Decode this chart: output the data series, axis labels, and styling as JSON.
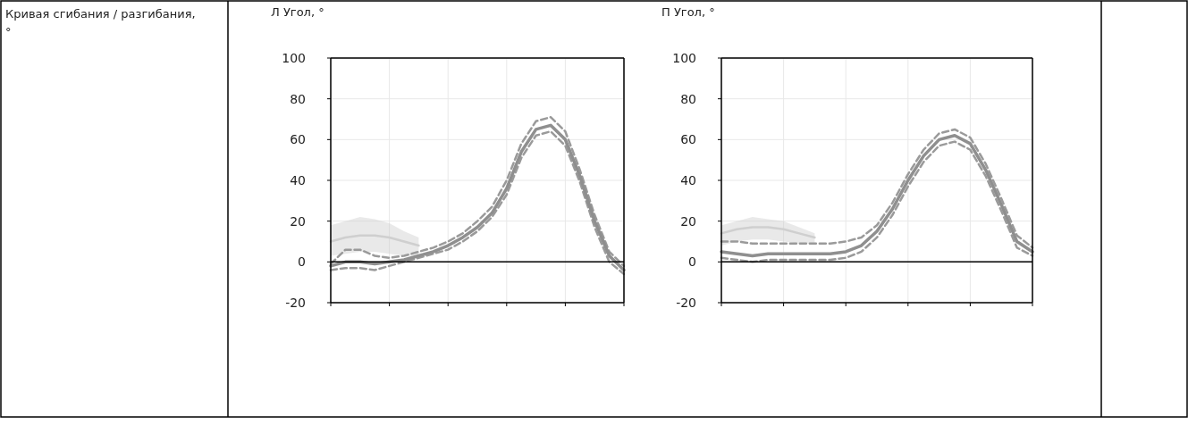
{
  "chart_data": [
    {
      "type": "line",
      "title": "Л Угол, °",
      "annotations": [
        "Кривая сгибания / разгибания, °"
      ],
      "categories": [
        null,
        null,
        null,
        null,
        null,
        null,
        null,
        null,
        null,
        null,
        null,
        null,
        null,
        null,
        null,
        null,
        null,
        null,
        null,
        null,
        null
      ],
      "ylim": [
        -20,
        100
      ],
      "yticks": [
        -20,
        0,
        20,
        40,
        60,
        80,
        100
      ],
      "grid": true,
      "series": [
        {
          "color": "#cfcfcf",
          "line_style": "solid",
          "values": [
            10,
            12,
            13,
            13,
            12,
            10,
            8,
            null,
            null,
            null,
            null,
            null,
            null,
            null,
            null,
            null,
            null,
            null,
            null,
            null,
            null
          ],
          "lower": [
            3,
            4,
            5,
            5,
            4,
            3,
            3,
            null,
            null,
            null,
            null,
            null,
            null,
            null,
            null,
            null,
            null,
            null,
            null,
            null,
            null
          ],
          "upper": [
            18,
            20,
            22,
            21,
            19,
            15,
            12,
            null,
            null,
            null,
            null,
            null,
            null,
            null,
            null,
            null,
            null,
            null,
            null,
            null,
            null
          ]
        },
        {
          "color": "#9a9a9a",
          "line_style": "dashed",
          "values": [
            -1,
            6,
            6,
            3,
            2,
            3,
            5,
            7,
            10,
            14,
            20,
            27,
            40,
            58,
            69,
            71,
            64,
            45,
            23,
            5,
            -2
          ]
        },
        {
          "color": "#9a9a9a",
          "line_style": "dashed",
          "values": [
            -4,
            -3,
            -3,
            -4,
            -2,
            0,
            2,
            4,
            6,
            10,
            15,
            22,
            33,
            51,
            62,
            64,
            57,
            39,
            17,
            0,
            -6
          ]
        },
        {
          "color": "#8f8f8f",
          "line_style": "solid",
          "values": [
            -2,
            0,
            0,
            -1,
            0,
            1,
            3,
            5,
            8,
            12,
            17,
            24,
            36,
            54,
            65,
            67,
            60,
            42,
            20,
            3,
            -4
          ]
        }
      ],
      "ref_lines": [
        {
          "axis": "y",
          "value": 0,
          "color": "#000000",
          "line_style": "solid"
        }
      ]
    },
    {
      "type": "line",
      "title": "П Угол, °",
      "categories": [
        null,
        null,
        null,
        null,
        null,
        null,
        null,
        null,
        null,
        null,
        null,
        null,
        null,
        null,
        null,
        null,
        null,
        null,
        null,
        null,
        null
      ],
      "ylim": [
        -20,
        100
      ],
      "yticks": [
        -20,
        0,
        20,
        40,
        60,
        80,
        100
      ],
      "grid": true,
      "series": [
        {
          "color": "#cfcfcf",
          "line_style": "solid",
          "values": [
            14,
            16,
            17,
            17,
            16,
            14,
            12,
            null,
            null,
            null,
            null,
            null,
            null,
            null,
            null,
            null,
            null,
            null,
            null,
            null,
            null
          ],
          "lower": [
            8,
            10,
            11,
            11,
            10,
            9,
            9,
            null,
            null,
            null,
            null,
            null,
            null,
            null,
            null,
            null,
            null,
            null,
            null,
            null,
            null
          ],
          "upper": [
            18,
            20,
            22,
            21,
            20,
            17,
            14,
            null,
            null,
            null,
            null,
            null,
            null,
            null,
            null,
            null,
            null,
            null,
            null,
            null,
            null
          ]
        },
        {
          "color": "#9a9a9a",
          "line_style": "dashed",
          "values": [
            10,
            10,
            9,
            9,
            9,
            9,
            9,
            9,
            10,
            12,
            18,
            29,
            43,
            55,
            63,
            65,
            61,
            48,
            31,
            13,
            7
          ]
        },
        {
          "color": "#9a9a9a",
          "line_style": "dashed",
          "values": [
            2,
            1,
            0,
            1,
            1,
            1,
            1,
            1,
            2,
            5,
            12,
            23,
            37,
            49,
            57,
            59,
            55,
            42,
            25,
            7,
            3
          ]
        },
        {
          "color": "#8f8f8f",
          "line_style": "solid",
          "values": [
            5,
            4,
            3,
            4,
            4,
            4,
            4,
            4,
            5,
            8,
            15,
            26,
            40,
            52,
            60,
            62,
            58,
            45,
            28,
            10,
            5
          ]
        }
      ],
      "ref_lines": [
        {
          "axis": "y",
          "value": 0,
          "color": "#000000",
          "line_style": "solid"
        }
      ]
    }
  ]
}
